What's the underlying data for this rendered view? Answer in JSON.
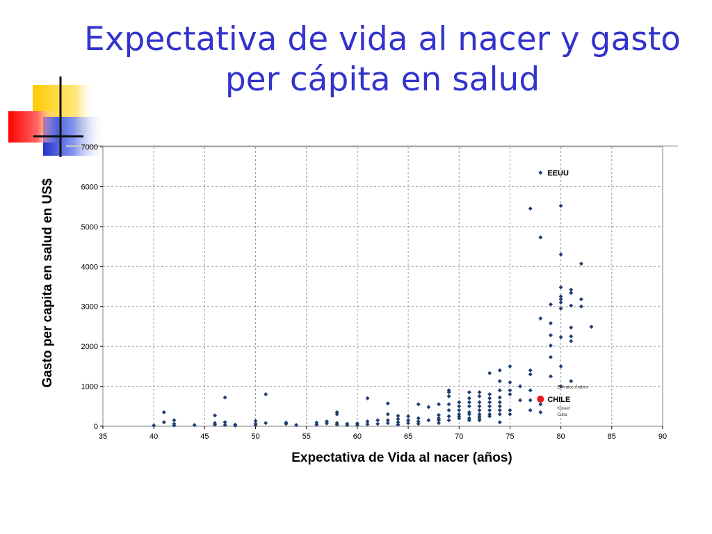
{
  "slide": {
    "title": "Expectativa de vida al nacer y gasto per cápita en salud",
    "title_color": "#3333cc"
  },
  "chart_data": {
    "type": "scatter",
    "xlabel": "Expectativa de Vida al nacer (años)",
    "ylabel": "Gasto per  capita en salud en US$",
    "xlim": [
      35,
      90
    ],
    "ylim": [
      0,
      7000
    ],
    "x_ticks": [
      35,
      40,
      45,
      50,
      55,
      60,
      65,
      70,
      75,
      80,
      85,
      90
    ],
    "y_ticks": [
      0,
      1000,
      2000,
      3000,
      4000,
      5000,
      6000,
      7000
    ],
    "grid": true,
    "series": [
      {
        "color": "#1f3f6f",
        "marker": "diamond",
        "points": [
          [
            40,
            20
          ],
          [
            41,
            350
          ],
          [
            41,
            100
          ],
          [
            42,
            150
          ],
          [
            42,
            60
          ],
          [
            42,
            20
          ],
          [
            44,
            30
          ],
          [
            46,
            270
          ],
          [
            46,
            80
          ],
          [
            46,
            40
          ],
          [
            47,
            720
          ],
          [
            47,
            100
          ],
          [
            47,
            30
          ],
          [
            48,
            40
          ],
          [
            48,
            20
          ],
          [
            50,
            130
          ],
          [
            50,
            60
          ],
          [
            50,
            30
          ],
          [
            51,
            800
          ],
          [
            51,
            80
          ],
          [
            53,
            90
          ],
          [
            53,
            60
          ],
          [
            54,
            30
          ],
          [
            56,
            90
          ],
          [
            56,
            40
          ],
          [
            57,
            120
          ],
          [
            57,
            70
          ],
          [
            58,
            350
          ],
          [
            58,
            300
          ],
          [
            58,
            80
          ],
          [
            58,
            40
          ],
          [
            59,
            60
          ],
          [
            59,
            30
          ],
          [
            60,
            70
          ],
          [
            60,
            30
          ],
          [
            61,
            700
          ],
          [
            61,
            120
          ],
          [
            61,
            50
          ],
          [
            62,
            150
          ],
          [
            62,
            60
          ],
          [
            63,
            570
          ],
          [
            63,
            300
          ],
          [
            63,
            150
          ],
          [
            63,
            80
          ],
          [
            64,
            260
          ],
          [
            64,
            180
          ],
          [
            64,
            100
          ],
          [
            64,
            40
          ],
          [
            65,
            250
          ],
          [
            65,
            150
          ],
          [
            65,
            80
          ],
          [
            66,
            550
          ],
          [
            66,
            200
          ],
          [
            66,
            120
          ],
          [
            66,
            60
          ],
          [
            67,
            480
          ],
          [
            67,
            150
          ],
          [
            68,
            550
          ],
          [
            68,
            280
          ],
          [
            68,
            200
          ],
          [
            68,
            150
          ],
          [
            68,
            80
          ],
          [
            69,
            900
          ],
          [
            69,
            850
          ],
          [
            69,
            750
          ],
          [
            69,
            550
          ],
          [
            69,
            400
          ],
          [
            69,
            250
          ],
          [
            69,
            150
          ],
          [
            70,
            600
          ],
          [
            70,
            500
          ],
          [
            70,
            400
          ],
          [
            70,
            300
          ],
          [
            70,
            250
          ],
          [
            70,
            200
          ],
          [
            71,
            850
          ],
          [
            71,
            700
          ],
          [
            71,
            600
          ],
          [
            71,
            500
          ],
          [
            71,
            350
          ],
          [
            71,
            300
          ],
          [
            71,
            200
          ],
          [
            71,
            150
          ],
          [
            72,
            850
          ],
          [
            72,
            750
          ],
          [
            72,
            600
          ],
          [
            72,
            500
          ],
          [
            72,
            400
          ],
          [
            72,
            300
          ],
          [
            72,
            250
          ],
          [
            72,
            200
          ],
          [
            72,
            150
          ],
          [
            73,
            1330
          ],
          [
            73,
            800
          ],
          [
            73,
            700
          ],
          [
            73,
            600
          ],
          [
            73,
            500
          ],
          [
            73,
            400
          ],
          [
            73,
            300
          ],
          [
            73,
            250
          ],
          [
            74,
            1400
          ],
          [
            74,
            1130
          ],
          [
            74,
            900
          ],
          [
            74,
            720
          ],
          [
            74,
            600
          ],
          [
            74,
            500
          ],
          [
            74,
            400
          ],
          [
            74,
            300
          ],
          [
            74,
            100
          ],
          [
            75,
            1500
          ],
          [
            75,
            1100
          ],
          [
            75,
            900
          ],
          [
            75,
            800
          ],
          [
            75,
            400
          ],
          [
            75,
            300
          ],
          [
            76,
            1000
          ],
          [
            76,
            650
          ],
          [
            77,
            5450
          ],
          [
            77,
            1400
          ],
          [
            77,
            1300
          ],
          [
            77,
            900
          ],
          [
            77,
            650
          ],
          [
            77,
            400
          ],
          [
            78,
            4730
          ],
          [
            78,
            2700
          ],
          [
            78,
            550
          ],
          [
            78,
            350
          ],
          [
            79,
            3050
          ],
          [
            79,
            2580
          ],
          [
            79,
            2280
          ],
          [
            79,
            2020
          ],
          [
            79,
            1730
          ],
          [
            79,
            1250
          ],
          [
            80,
            5520
          ],
          [
            80,
            4300
          ],
          [
            80,
            3480
          ],
          [
            80,
            3250
          ],
          [
            80,
            3180
          ],
          [
            80,
            3100
          ],
          [
            80,
            2950
          ],
          [
            80,
            2230
          ],
          [
            80,
            1500
          ],
          [
            80,
            1000
          ],
          [
            81,
            3420
          ],
          [
            81,
            3340
          ],
          [
            81,
            3020
          ],
          [
            81,
            2470
          ],
          [
            81,
            2250
          ],
          [
            81,
            2130
          ],
          [
            81,
            1130
          ],
          [
            82,
            4070
          ],
          [
            82,
            3180
          ],
          [
            82,
            3000
          ],
          [
            83,
            2490
          ]
        ]
      },
      {
        "color": "#e8141b",
        "marker": "circle",
        "points": [
          [
            78,
            680
          ]
        ]
      }
    ],
    "annotations": [
      {
        "text": "EEUU",
        "x": 78,
        "y": 6350,
        "size": "large",
        "with_marker": true
      },
      {
        "text": "CHILE",
        "x": 78,
        "y": 680,
        "size": "large"
      },
      {
        "text": "Emiratos Árabes",
        "x": 78,
        "y": 980,
        "size": "small"
      },
      {
        "text": "Kuwait",
        "x": 78,
        "y": 450,
        "size": "small"
      },
      {
        "text": "Cuba",
        "x": 78,
        "y": 300,
        "size": "small"
      }
    ]
  }
}
